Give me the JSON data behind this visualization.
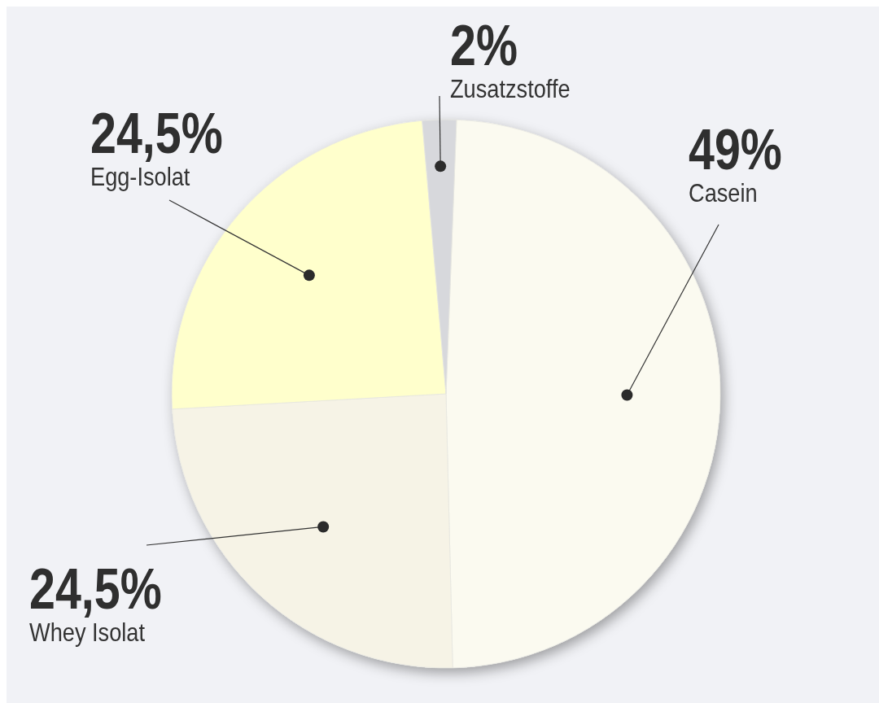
{
  "chart_data": {
    "type": "pie",
    "categories": [
      "Casein",
      "Whey Isolat",
      "Egg-Isolat",
      "Zusatzstoffe"
    ],
    "values": [
      49,
      24.5,
      24.5,
      2
    ],
    "colors": [
      "#fbfaf0",
      "#f6f3e6",
      "#ffffcc",
      "#d7d8dc"
    ],
    "value_labels": [
      "49%",
      "24,5%",
      "24,5%",
      "2%"
    ]
  }
}
